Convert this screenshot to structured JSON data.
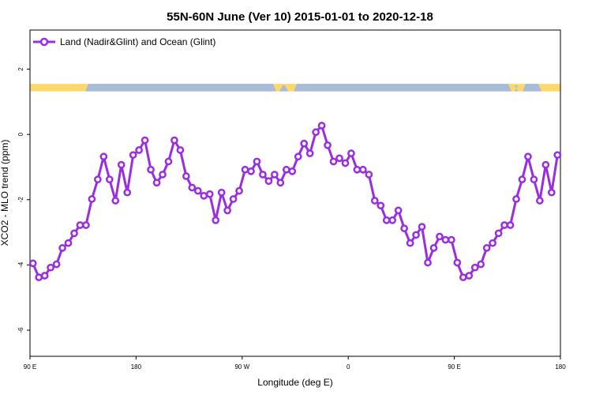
{
  "chart_data": {
    "type": "line",
    "title": "55N-60N June (Ver 10)   2015-01-01 to 2020-12-18",
    "xlabel": "Longitude (deg E)",
    "ylabel": "XCO2 - MLO trend (ppm)",
    "xlim": [
      90,
      540
    ],
    "ylim": [
      -6.8,
      3.2
    ],
    "x_ticks": [
      {
        "value": 90,
        "label": "90 E"
      },
      {
        "value": 180,
        "label": "180"
      },
      {
        "value": 270,
        "label": "90 W"
      },
      {
        "value": 360,
        "label": "0"
      },
      {
        "value": 450,
        "label": "90 E"
      },
      {
        "value": 540,
        "label": "180"
      }
    ],
    "y_ticks": [
      {
        "value": 2,
        "label": "2"
      },
      {
        "value": 0,
        "label": "0"
      },
      {
        "value": -2,
        "label": "-2"
      },
      {
        "value": -4,
        "label": "-4"
      },
      {
        "value": -6,
        "label": "-6"
      }
    ],
    "legend_position": "top-left",
    "land_ocean_band": {
      "y_range": [
        1.32,
        1.55
      ],
      "land_color": "#ffd86b",
      "ocean_color": "#a7bcd8"
    },
    "series": [
      {
        "name": "Land (Nadir&Glint) and Ocean (Glint)",
        "color": "#9b2de0",
        "x": [
          92.5,
          97.5,
          102.5,
          107.5,
          112.5,
          117.5,
          122.5,
          127.5,
          132.5,
          137.5,
          142.5,
          147.5,
          152.5,
          157.5,
          162.5,
          167.5,
          172.5,
          177.5,
          182.5,
          187.5,
          192.5,
          197.5,
          202.5,
          207.5,
          212.5,
          217.5,
          222.5,
          227.5,
          232.5,
          237.5,
          242.5,
          247.5,
          252.5,
          257.5,
          262.5,
          267.5,
          272.5,
          277.5,
          282.5,
          287.5,
          292.5,
          297.5,
          302.5,
          307.5,
          312.5,
          317.5,
          322.5,
          327.5,
          332.5,
          337.5,
          342.5,
          347.5,
          352.5,
          357.5,
          362.5,
          367.5,
          372.5,
          377.5,
          382.5,
          387.5,
          392.5,
          397.5,
          402.5,
          407.5,
          412.5,
          417.5,
          422.5,
          427.5,
          432.5,
          437.5,
          442.5,
          447.5,
          452.5,
          457.5,
          462.5,
          467.5,
          472.5,
          477.5,
          482.5,
          487.5,
          492.5,
          497.5,
          502.5,
          507.5,
          512.5,
          517.5,
          522.5,
          527.5,
          532.5,
          537.5
        ],
        "y": [
          -3.95,
          -4.38,
          -4.33,
          -4.08,
          -3.98,
          -3.48,
          -3.33,
          -3.03,
          -2.78,
          -2.78,
          -1.98,
          -1.38,
          -0.68,
          -1.38,
          -2.03,
          -0.93,
          -1.78,
          -0.63,
          -0.48,
          -0.18,
          -1.08,
          -1.48,
          -1.23,
          -0.83,
          -0.18,
          -0.48,
          -1.28,
          -1.63,
          -1.73,
          -1.88,
          -1.83,
          -2.63,
          -1.78,
          -2.33,
          -1.98,
          -1.73,
          -1.08,
          -1.13,
          -0.83,
          -1.23,
          -1.43,
          -1.23,
          -1.48,
          -1.08,
          -1.13,
          -0.68,
          -0.28,
          -0.58,
          0.07,
          0.27,
          -0.33,
          -0.83,
          -0.73,
          -0.88,
          -0.58,
          -1.08,
          -1.08,
          -1.23,
          -2.03,
          -2.18,
          -2.63,
          -2.63,
          -2.33,
          -2.88,
          -3.33,
          -3.08,
          -2.83,
          -3.93,
          -3.48,
          -3.13,
          -3.23,
          -3.23,
          -3.93,
          -4.38,
          -4.33,
          -4.08,
          -3.98,
          -3.48,
          -3.33,
          -3.03,
          -2.78,
          -2.78,
          -1.98,
          -1.38,
          -0.68,
          -1.38,
          -2.03,
          -0.93,
          -1.78,
          -0.63
        ]
      }
    ]
  }
}
